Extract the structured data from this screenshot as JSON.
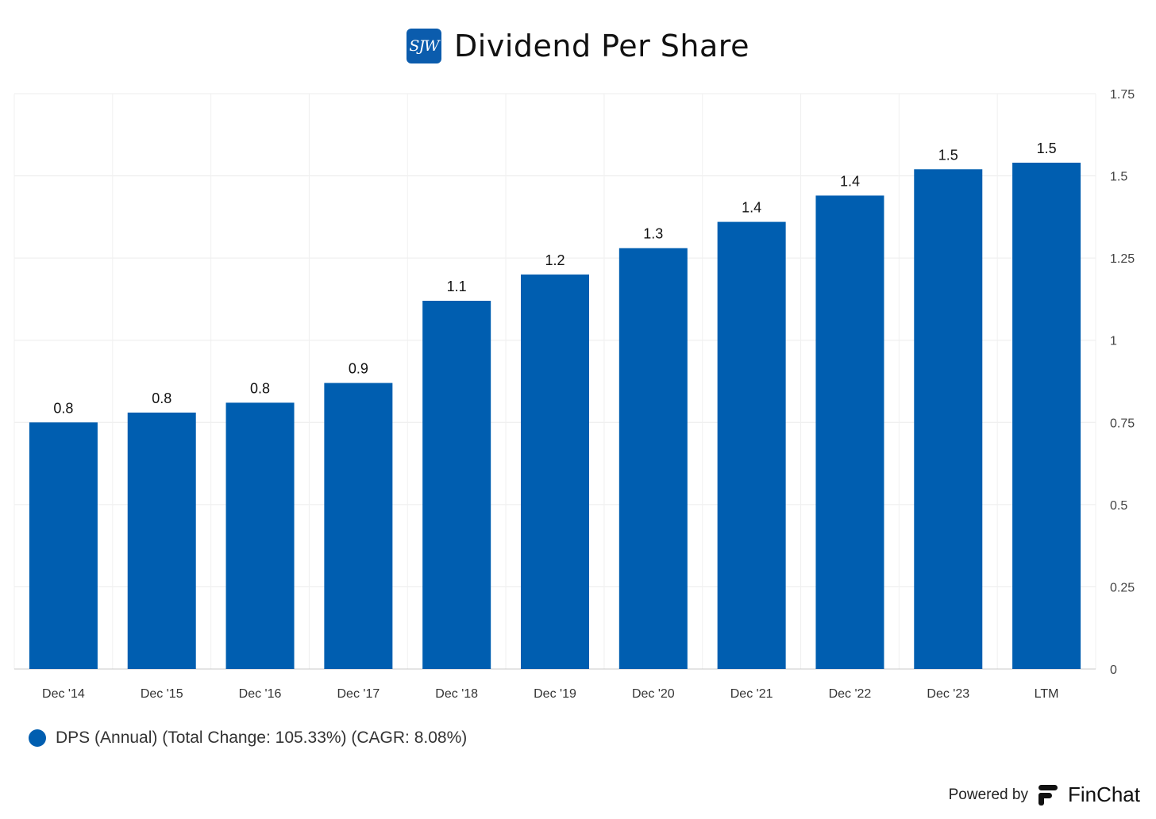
{
  "header": {
    "logo_text": "SJW",
    "title": "Dividend Per Share"
  },
  "legend": {
    "label": "DPS (Annual) (Total Change: 105.33%) (CAGR: 8.08%)"
  },
  "footer": {
    "powered_by": "Powered by",
    "brand": "FinChat"
  },
  "colors": {
    "bar": "#005eb0",
    "logo_bg": "#0b5cad"
  },
  "chart_data": {
    "type": "bar",
    "title": "Dividend Per Share",
    "categories": [
      "Dec '14",
      "Dec '15",
      "Dec '16",
      "Dec '17",
      "Dec '18",
      "Dec '19",
      "Dec '20",
      "Dec '21",
      "Dec '22",
      "Dec '23",
      "LTM"
    ],
    "series": [
      {
        "name": "DPS (Annual) (Total Change: 105.33%) (CAGR: 8.08%)",
        "values": [
          0.75,
          0.78,
          0.81,
          0.87,
          1.12,
          1.2,
          1.28,
          1.36,
          1.44,
          1.52,
          1.54
        ],
        "labels": [
          "0.8",
          "0.8",
          "0.8",
          "0.9",
          "1.1",
          "1.2",
          "1.3",
          "1.4",
          "1.4",
          "1.5",
          "1.5"
        ]
      }
    ],
    "ylim": [
      0,
      1.75
    ],
    "yticks": [
      0,
      0.25,
      0.5,
      0.75,
      1,
      1.25,
      1.5,
      1.75
    ],
    "ytick_labels": [
      "0",
      "0.25",
      "0.5",
      "0.75",
      "1",
      "1.25",
      "1.5",
      "1.75"
    ],
    "y_axis_side": "right",
    "grid": true,
    "legend_position": "bottom-left"
  }
}
